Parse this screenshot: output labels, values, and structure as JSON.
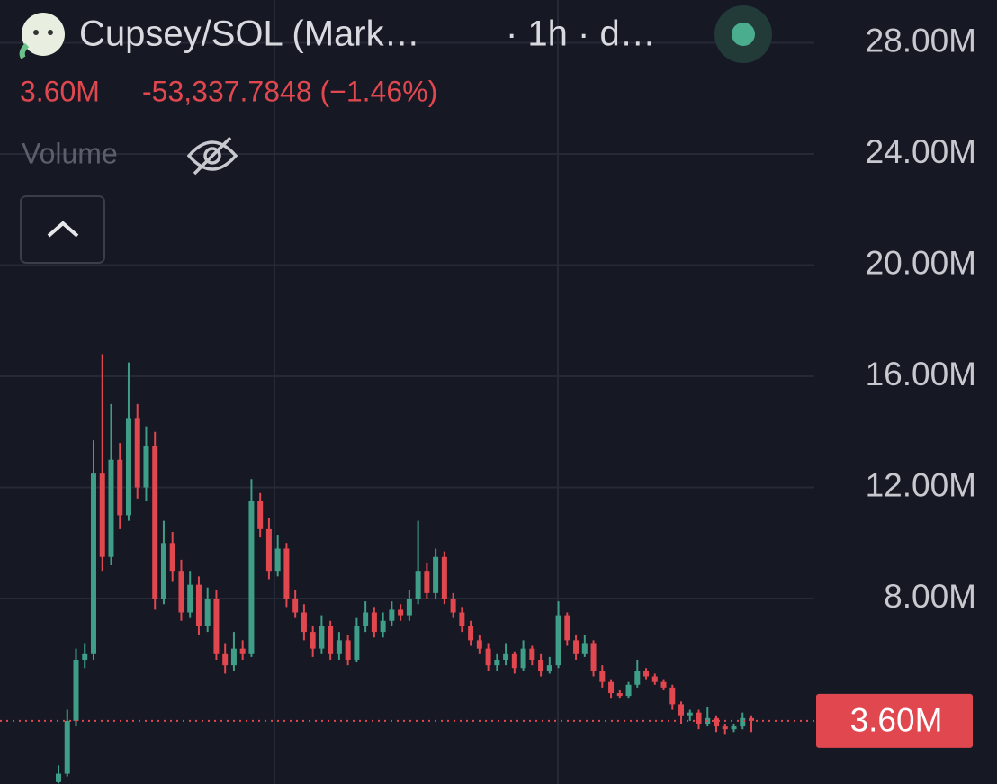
{
  "header": {
    "symbol": "Cupsey/SOL (Mark…",
    "interval": "· 1h · d…",
    "price": "3.60M",
    "change": "-53,337.7848 (−1.46%)",
    "volume_label": "Volume"
  },
  "chart_data": {
    "type": "candlestick",
    "up_color": "#3e9e87",
    "down_color": "#e0474f",
    "grid": true,
    "ylim": [
      1.33,
      29.54
    ],
    "yticks": [
      {
        "value": 8,
        "label": "8.00M"
      },
      {
        "value": 12,
        "label": "12.00M"
      },
      {
        "value": 16,
        "label": "16.00M"
      },
      {
        "value": 20,
        "label": "20.00M"
      },
      {
        "value": 24,
        "label": "24.00M"
      },
      {
        "value": 28,
        "label": "28.00M"
      }
    ],
    "last_price": {
      "value": 3.6,
      "label": "3.60M"
    },
    "open": [
      1.4,
      1.7,
      3.6,
      5.8,
      6.0,
      12.5,
      9.5,
      13.0,
      11.0,
      14.5,
      12.0,
      13.5,
      8.0,
      10.0,
      9.0,
      7.5,
      8.5,
      7.0,
      8.0,
      6.0,
      5.6,
      6.2,
      6.0,
      11.5,
      10.5,
      9.0,
      9.8,
      8.0,
      7.5,
      6.8,
      6.2,
      7.0,
      6.0,
      6.5,
      5.8,
      7.0,
      7.5,
      6.8,
      7.2,
      7.6,
      7.4,
      8.0,
      9.0,
      8.2,
      9.5,
      8.0,
      7.5,
      7.0,
      6.5,
      6.2,
      5.6,
      5.8,
      6.0,
      5.5,
      6.2,
      5.8,
      5.4,
      5.6,
      7.4,
      6.5,
      6.0,
      6.4,
      5.4,
      5.0,
      4.6,
      4.5,
      4.9,
      5.4,
      5.2,
      5.0,
      4.8,
      4.2,
      3.8,
      3.9,
      3.5,
      3.7,
      3.4,
      3.3,
      3.4,
      3.7
    ],
    "high": [
      2.0,
      4.0,
      6.2,
      6.4,
      13.7,
      16.8,
      15.0,
      13.6,
      16.5,
      15.0,
      14.2,
      14.0,
      10.8,
      10.4,
      9.4,
      9.0,
      8.8,
      8.4,
      8.3,
      6.4,
      6.8,
      6.5,
      12.3,
      11.8,
      10.9,
      10.3,
      10.0,
      8.3,
      7.8,
      7.0,
      7.4,
      7.2,
      6.8,
      6.7,
      7.3,
      7.9,
      7.7,
      7.5,
      7.9,
      7.8,
      8.3,
      10.8,
      9.3,
      9.8,
      9.7,
      8.2,
      7.7,
      7.2,
      6.7,
      6.4,
      6.0,
      6.4,
      6.1,
      6.5,
      6.3,
      6.0,
      5.9,
      7.9,
      7.5,
      6.7,
      6.7,
      6.5,
      5.6,
      5.1,
      4.7,
      5.0,
      5.8,
      5.5,
      5.3,
      5.1,
      4.9,
      4.3,
      4.0,
      4.0,
      4.1,
      3.8,
      3.5,
      3.5,
      3.9,
      3.8
    ],
    "low": [
      1.35,
      1.6,
      3.4,
      5.5,
      5.8,
      9.0,
      9.2,
      10.5,
      10.8,
      11.6,
      11.5,
      7.6,
      7.8,
      8.6,
      7.2,
      7.3,
      6.7,
      6.8,
      5.8,
      5.3,
      5.4,
      5.8,
      5.9,
      10.2,
      8.7,
      8.8,
      7.7,
      7.3,
      6.5,
      5.9,
      6.0,
      5.8,
      5.8,
      5.6,
      5.7,
      6.8,
      6.6,
      6.6,
      7.0,
      7.2,
      7.2,
      7.8,
      8.0,
      8.0,
      7.8,
      7.3,
      6.8,
      6.3,
      6.0,
      5.4,
      5.4,
      5.6,
      5.3,
      5.4,
      5.6,
      5.2,
      5.3,
      5.5,
      6.3,
      5.8,
      5.9,
      5.2,
      4.8,
      4.4,
      4.4,
      4.4,
      4.8,
      5.1,
      4.9,
      4.7,
      4.0,
      3.5,
      3.6,
      3.3,
      3.4,
      3.2,
      3.1,
      3.2,
      3.3,
      3.2
    ],
    "close": [
      1.7,
      3.6,
      5.8,
      6.0,
      12.5,
      9.5,
      13.0,
      11.0,
      14.5,
      12.0,
      13.5,
      8.0,
      10.0,
      9.0,
      7.5,
      8.5,
      7.0,
      8.0,
      6.0,
      5.6,
      6.2,
      6.0,
      11.5,
      10.5,
      9.0,
      9.8,
      8.0,
      7.5,
      6.8,
      6.2,
      7.0,
      6.0,
      6.5,
      5.8,
      7.0,
      7.5,
      6.8,
      7.2,
      7.6,
      7.4,
      8.0,
      9.0,
      8.2,
      9.5,
      8.0,
      7.5,
      7.0,
      6.5,
      6.2,
      5.6,
      5.8,
      6.0,
      5.5,
      6.2,
      5.8,
      5.4,
      5.6,
      7.4,
      6.5,
      6.0,
      6.4,
      5.4,
      5.0,
      4.6,
      4.5,
      4.9,
      5.4,
      5.2,
      5.0,
      4.8,
      4.2,
      3.8,
      3.9,
      3.5,
      3.7,
      3.4,
      3.3,
      3.4,
      3.7,
      3.6
    ]
  }
}
